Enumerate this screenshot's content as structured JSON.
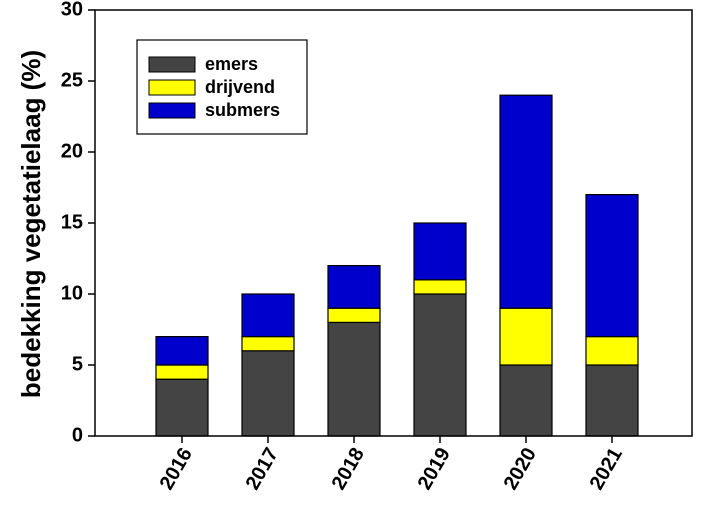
{
  "chart_data": {
    "type": "bar",
    "stacked": true,
    "categories": [
      "2016",
      "2017",
      "2018",
      "2019",
      "2020",
      "2021"
    ],
    "series": [
      {
        "name": "emers",
        "values": [
          4,
          6,
          8,
          10,
          5,
          5
        ],
        "color": "#444444"
      },
      {
        "name": "drijvend",
        "values": [
          1,
          1,
          1,
          1,
          4,
          2
        ],
        "color": "#ffff00"
      },
      {
        "name": "submers",
        "values": [
          2,
          3,
          3,
          4,
          15,
          10
        ],
        "color": "#0000cc"
      }
    ],
    "title": "",
    "xlabel": "",
    "ylabel": "bedekking vegetatielaag (%)",
    "ylim": [
      0,
      30
    ],
    "yticks": [
      0,
      5,
      10,
      15,
      20,
      25,
      30
    ],
    "grid": false,
    "legend_position": "top-left"
  }
}
